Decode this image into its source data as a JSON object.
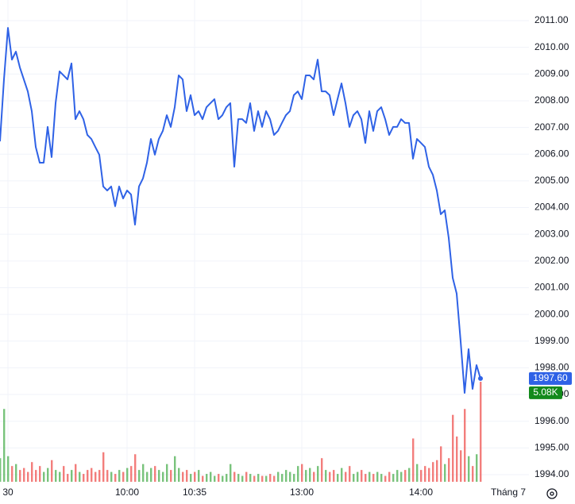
{
  "chart_data": {
    "type": "line",
    "series": [
      {
        "name": "Price",
        "color": "#2f62e6",
        "values": [
          2006.48,
          2008.8,
          2010.73,
          2009.54,
          2009.84,
          2009.25,
          2008.8,
          2008.35,
          2007.61,
          2006.27,
          2005.68,
          2005.68,
          2007.02,
          2005.89,
          2007.91,
          2009.1,
          2008.95,
          2008.8,
          2009.4,
          2007.31,
          2007.61,
          2007.31,
          2006.72,
          2006.57,
          2006.27,
          2005.98,
          2004.79,
          2004.64,
          2004.79,
          2004.05,
          2004.79,
          2004.34,
          2004.64,
          2004.49,
          2003.36,
          2004.79,
          2005.09,
          2005.68,
          2006.57,
          2005.98,
          2006.57,
          2006.87,
          2007.46,
          2007.02,
          2007.76,
          2008.95,
          2008.8,
          2007.61,
          2008.21,
          2007.46,
          2007.61,
          2007.31,
          2007.76,
          2007.91,
          2008.06,
          2007.31,
          2007.46,
          2007.76,
          2007.91,
          2005.53,
          2007.31,
          2007.31,
          2007.17,
          2007.91,
          2006.87,
          2007.61,
          2007.02,
          2007.61,
          2007.31,
          2006.72,
          2006.87,
          2007.17,
          2007.46,
          2007.61,
          2008.21,
          2008.35,
          2008.06,
          2008.95,
          2008.95,
          2008.8,
          2009.54,
          2008.35,
          2008.35,
          2008.21,
          2007.46,
          2008.06,
          2008.65,
          2007.91,
          2007.02,
          2007.46,
          2007.61,
          2007.31,
          2006.42,
          2007.61,
          2006.87,
          2007.61,
          2007.76,
          2007.31,
          2006.72,
          2007.02,
          2007.02,
          2007.31,
          2007.17,
          2007.17,
          2005.83,
          2006.57,
          2006.42,
          2006.27,
          2005.53,
          2005.23,
          2004.64,
          2003.75,
          2003.9,
          2002.86,
          2001.37,
          2000.78,
          1998.99,
          1997.06,
          1998.7,
          1997.21,
          1998.1,
          1997.6
        ]
      }
    ],
    "volume": {
      "values": [
        1.2,
        3.7,
        1.3,
        0.8,
        0.9,
        0.6,
        0.7,
        0.5,
        1.0,
        0.6,
        0.8,
        0.5,
        0.7,
        1.1,
        0.6,
        0.5,
        0.8,
        0.4,
        0.6,
        0.9,
        0.5,
        0.4,
        0.6,
        0.7,
        0.5,
        0.6,
        1.5,
        0.6,
        0.5,
        0.4,
        0.6,
        0.5,
        0.7,
        0.8,
        1.4,
        0.6,
        0.9,
        0.5,
        0.7,
        0.8,
        0.6,
        0.5,
        0.9,
        0.6,
        1.3,
        0.7,
        0.5,
        0.6,
        0.4,
        0.5,
        0.6,
        0.3,
        0.4,
        0.5,
        0.3,
        0.4,
        0.3,
        0.4,
        0.9,
        0.5,
        0.4,
        0.3,
        0.5,
        0.4,
        0.3,
        0.4,
        0.3,
        0.3,
        0.4,
        0.3,
        0.5,
        0.4,
        0.6,
        0.5,
        0.4,
        0.8,
        0.9,
        0.6,
        0.7,
        0.5,
        0.8,
        1.2,
        0.6,
        0.5,
        0.6,
        0.4,
        0.7,
        0.5,
        0.8,
        0.4,
        0.5,
        0.6,
        0.4,
        0.5,
        0.4,
        0.5,
        0.4,
        0.3,
        0.5,
        0.4,
        0.6,
        0.5,
        0.6,
        0.7,
        2.2,
        0.9,
        0.6,
        0.8,
        0.7,
        1.0,
        1.1,
        1.8,
        0.9,
        1.2,
        3.4,
        2.3,
        1.6,
        3.7,
        1.3,
        0.8,
        1.4,
        5.08
      ],
      "up_color": "#4caf50",
      "down_color": "#ef5350",
      "last_label": "5.08K",
      "last_color": "#138a1c"
    },
    "last_price_label": "1997.60",
    "ylim": [
      1994,
      2011
    ],
    "yticks": [
      {
        "value": 1994,
        "label": "1994.00"
      },
      {
        "value": 1995,
        "label": "1995.00"
      },
      {
        "value": 1996,
        "label": "1996.00"
      },
      {
        "value": 1997,
        "label": "1997.00"
      },
      {
        "value": 1998,
        "label": "1998.00"
      },
      {
        "value": 1999,
        "label": "1999.00"
      },
      {
        "value": 2000,
        "label": "2000.00"
      },
      {
        "value": 2001,
        "label": "2001.00"
      },
      {
        "value": 2002,
        "label": "2002.00"
      },
      {
        "value": 2003,
        "label": "2003.00"
      },
      {
        "value": 2004,
        "label": "2004.00"
      },
      {
        "value": 2005,
        "label": "2005.00"
      },
      {
        "value": 2006,
        "label": "2006.00"
      },
      {
        "value": 2007,
        "label": "2007.00"
      },
      {
        "value": 2008,
        "label": "2008.00"
      },
      {
        "value": 2009,
        "label": "2009.00"
      },
      {
        "value": 2010,
        "label": "2010.00"
      },
      {
        "value": 2011,
        "label": "2011.00"
      }
    ],
    "xticks": [
      {
        "value": 2,
        "label": "30"
      },
      {
        "value": 32,
        "label": "10:00"
      },
      {
        "value": 49,
        "label": "10:35"
      },
      {
        "value": 76,
        "label": "13:00"
      },
      {
        "value": 106,
        "label": "14:00"
      }
    ],
    "period_label": "Tháng 7",
    "grid": true
  }
}
